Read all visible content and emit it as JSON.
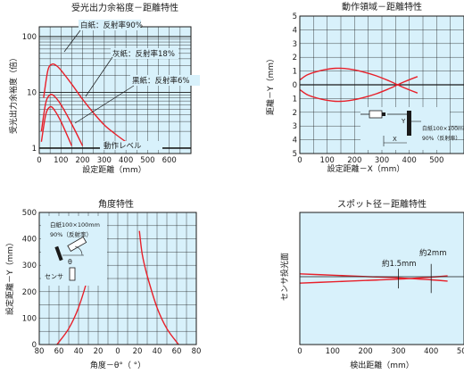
{
  "colors": {
    "plot_bg": "#d8f1fb",
    "grid": "#1a1a1a",
    "curve": "#e8202a",
    "text": "#1a1a1a"
  },
  "chart_data": [
    {
      "id": "chart1",
      "type": "line",
      "title": "受光出力余裕度－距離特性",
      "xlabel": "設定距離（mm）",
      "ylabel": "受光出力余裕度（倍）",
      "xscale": "linear",
      "yscale": "log",
      "xlim": [
        0,
        700
      ],
      "ylim": [
        0.8,
        150
      ],
      "xticks": [
        0,
        100,
        200,
        300,
        400,
        500,
        600
      ],
      "yticks": [
        1,
        10,
        100
      ],
      "grid": true,
      "series": [
        {
          "name": "白紙：反射率90%",
          "x": [
            20,
            40,
            60,
            80,
            100,
            150,
            200,
            250,
            300,
            350,
            400,
            450
          ],
          "y": [
            8,
            25,
            32,
            30,
            25,
            14,
            7.5,
            4.3,
            2.6,
            1.8,
            1.3,
            1.0
          ]
        },
        {
          "name": "灰紙：反射率18%",
          "x": [
            10,
            30,
            50,
            70,
            100,
            150,
            200
          ],
          "y": [
            2,
            6.5,
            9,
            8.5,
            6,
            2.7,
            1.1
          ]
        },
        {
          "name": "黒紙：反射率6%",
          "x": [
            10,
            30,
            50,
            70,
            100,
            150
          ],
          "y": [
            1.3,
            4,
            5.5,
            4.8,
            3,
            1.1
          ]
        }
      ],
      "annotations": [
        "白紙：反射率90%",
        "灰紙：反射率18%",
        "黒紙：反射率6%",
        "動作レベル"
      ]
    },
    {
      "id": "chart2",
      "type": "line",
      "title": "動作領域－距離特性",
      "xlabel": "設定距離－X（mm）",
      "ylabel": "距離－Y（mm）",
      "xlim": [
        0,
        600
      ],
      "ylim": [
        -5,
        5
      ],
      "xticks": [
        0,
        100,
        200,
        300,
        400,
        500
      ],
      "ytick_labels": [
        "5",
        "4",
        "3",
        "2",
        "1",
        "0",
        "1",
        "2",
        "3",
        "4",
        "5"
      ],
      "grid": true,
      "series": [
        {
          "name": "upper",
          "x": [
            0,
            30,
            80,
            130,
            180,
            230,
            280,
            330,
            380,
            430
          ],
          "y": [
            0.35,
            0.75,
            1.05,
            1.2,
            1.15,
            0.95,
            0.65,
            0.25,
            -0.2,
            -0.6
          ]
        },
        {
          "name": "lower",
          "x": [
            0,
            30,
            80,
            130,
            180,
            230,
            280,
            330,
            380,
            430
          ],
          "y": [
            -0.35,
            -0.75,
            -1.05,
            -1.2,
            -1.15,
            -0.95,
            -0.65,
            -0.25,
            0.2,
            0.6
          ]
        }
      ],
      "inset_labels": [
        "白紙100×100mm",
        "90%（反射率）"
      ],
      "inset_symbols": [
        "Y",
        "X"
      ]
    },
    {
      "id": "chart3",
      "type": "line",
      "title": "角度特性",
      "xlabel": "角度－θ°（ °）",
      "ylabel": "設定距離－Y（mm）",
      "xlim": [
        -60,
        60
      ],
      "ylim": [
        0,
        500
      ],
      "xtick_values": [
        -80,
        -60,
        -40,
        -20,
        0,
        20,
        40,
        60,
        80
      ],
      "xtick_labels": [
        "80",
        "60",
        "40",
        "20",
        "0",
        "20",
        "40",
        "60",
        "80"
      ],
      "yticks": [
        0,
        100,
        200,
        300,
        400,
        500
      ],
      "grid": true,
      "series": [
        {
          "name": "left",
          "x": [
            -62,
            -50,
            -40,
            -30,
            -25,
            -22
          ],
          "y": [
            0,
            60,
            140,
            260,
            340,
            430
          ]
        },
        {
          "name": "right",
          "x": [
            62,
            50,
            40,
            30,
            25,
            22
          ],
          "y": [
            0,
            60,
            140,
            260,
            340,
            430
          ]
        }
      ],
      "inset_labels": [
        "白紙100×100mm",
        "90%（反射率）",
        "θ",
        "センサ"
      ]
    },
    {
      "id": "chart4",
      "type": "line",
      "title": "スポット径－距離特性",
      "xlabel": "検出距離（mm）",
      "ylabel": "センサ投光面",
      "xlim": [
        0,
        500
      ],
      "xticks": [
        0,
        100,
        200,
        300,
        400,
        500
      ],
      "ylim": [
        -10,
        10
      ],
      "grid": false,
      "series": [
        {
          "name": "upper",
          "x": [
            0,
            100,
            200,
            300,
            400,
            450
          ],
          "y": [
            0.7,
            0.5,
            0.3,
            0.1,
            -0.2,
            -0.4
          ]
        },
        {
          "name": "lower",
          "x": [
            0,
            100,
            200,
            300,
            400,
            450
          ],
          "y": [
            -0.7,
            -0.5,
            -0.3,
            -0.1,
            0.2,
            0.4
          ]
        }
      ],
      "annotations": [
        "約1.5mm",
        "約2mm"
      ],
      "marks": [
        {
          "label": "約1.5mm",
          "x": 300,
          "half": 1.5
        },
        {
          "label": "約2mm",
          "x": 400,
          "half": 2.2
        }
      ]
    }
  ]
}
